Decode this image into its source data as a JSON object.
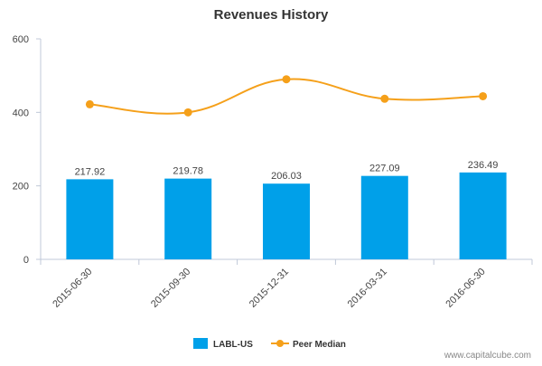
{
  "chart_data": {
    "type": "bar",
    "title": "Revenues History",
    "categories": [
      "2015-06-30",
      "2015-09-30",
      "2015-12-31",
      "2016-03-31",
      "2016-06-30"
    ],
    "series": [
      {
        "name": "LABL-US",
        "type": "bar",
        "color": "#00a0e9",
        "values": [
          217.92,
          219.78,
          206.03,
          227.09,
          236.49
        ],
        "labels": [
          "217.92",
          "219.78",
          "206.03",
          "227.09",
          "236.49"
        ]
      },
      {
        "name": "Peer Median",
        "type": "line",
        "color": "#f5a01a",
        "values": [
          422,
          400,
          490,
          437,
          444
        ]
      }
    ],
    "y_ticks": [
      "0",
      "200",
      "400",
      "600"
    ],
    "ylim": [
      0,
      600
    ],
    "grid": false,
    "legend_position": "bottom-center"
  },
  "watermark": "www.capitalcube.com"
}
